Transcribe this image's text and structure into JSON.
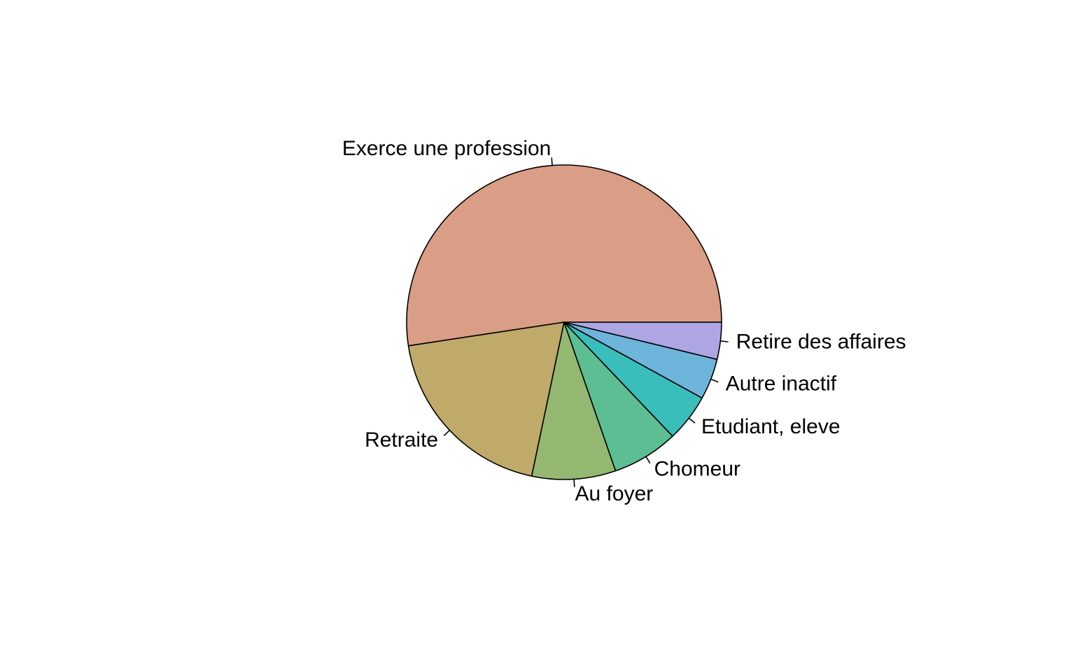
{
  "chart_data": {
    "type": "pie",
    "direction": "counterclockwise",
    "start": "east",
    "title": "",
    "slices": [
      {
        "label": "Exerce une profession",
        "value": 52.4,
        "color": "#DA9D85"
      },
      {
        "label": "Retraite",
        "value": 19.3,
        "color": "#BFAA69"
      },
      {
        "label": "Au foyer",
        "value": 8.6,
        "color": "#94B872"
      },
      {
        "label": "Chomeur",
        "value": 6.8,
        "color": "#5DBE94"
      },
      {
        "label": "Etudiant, eleve",
        "value": 4.9,
        "color": "#3ABEBC"
      },
      {
        "label": "Autre inactif",
        "value": 4.2,
        "color": "#6DB5DB"
      },
      {
        "label": "Retire des affaires",
        "value": 3.8,
        "color": "#ADA6E3"
      }
    ]
  }
}
